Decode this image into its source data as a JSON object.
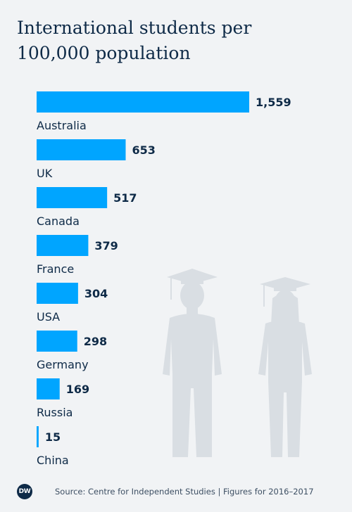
{
  "colors": {
    "bar": "#00a5ff",
    "text": "#0e2a47",
    "figure": "#d9dee3",
    "background": "#f1f3f5"
  },
  "header": {
    "title": "International students per 100,000 population"
  },
  "footer": {
    "logo_text": "DW",
    "source": "Source: Centre for Independent Studies | Figures for 2016–2017"
  },
  "icons": [
    "graduate-male-icon",
    "graduate-female-icon"
  ],
  "chart_data": {
    "type": "bar",
    "orientation": "horizontal",
    "title": "International students per 100,000 population",
    "categories": [
      "Australia",
      "UK",
      "Canada",
      "France",
      "USA",
      "Germany",
      "Russia",
      "China"
    ],
    "values": [
      1559,
      653,
      517,
      379,
      304,
      298,
      169,
      15
    ],
    "value_labels": [
      "1,559",
      "653",
      "517",
      "379",
      "304",
      "298",
      "169",
      "15"
    ],
    "xlim": [
      0,
      1559
    ],
    "grid": false,
    "legend": "none"
  }
}
